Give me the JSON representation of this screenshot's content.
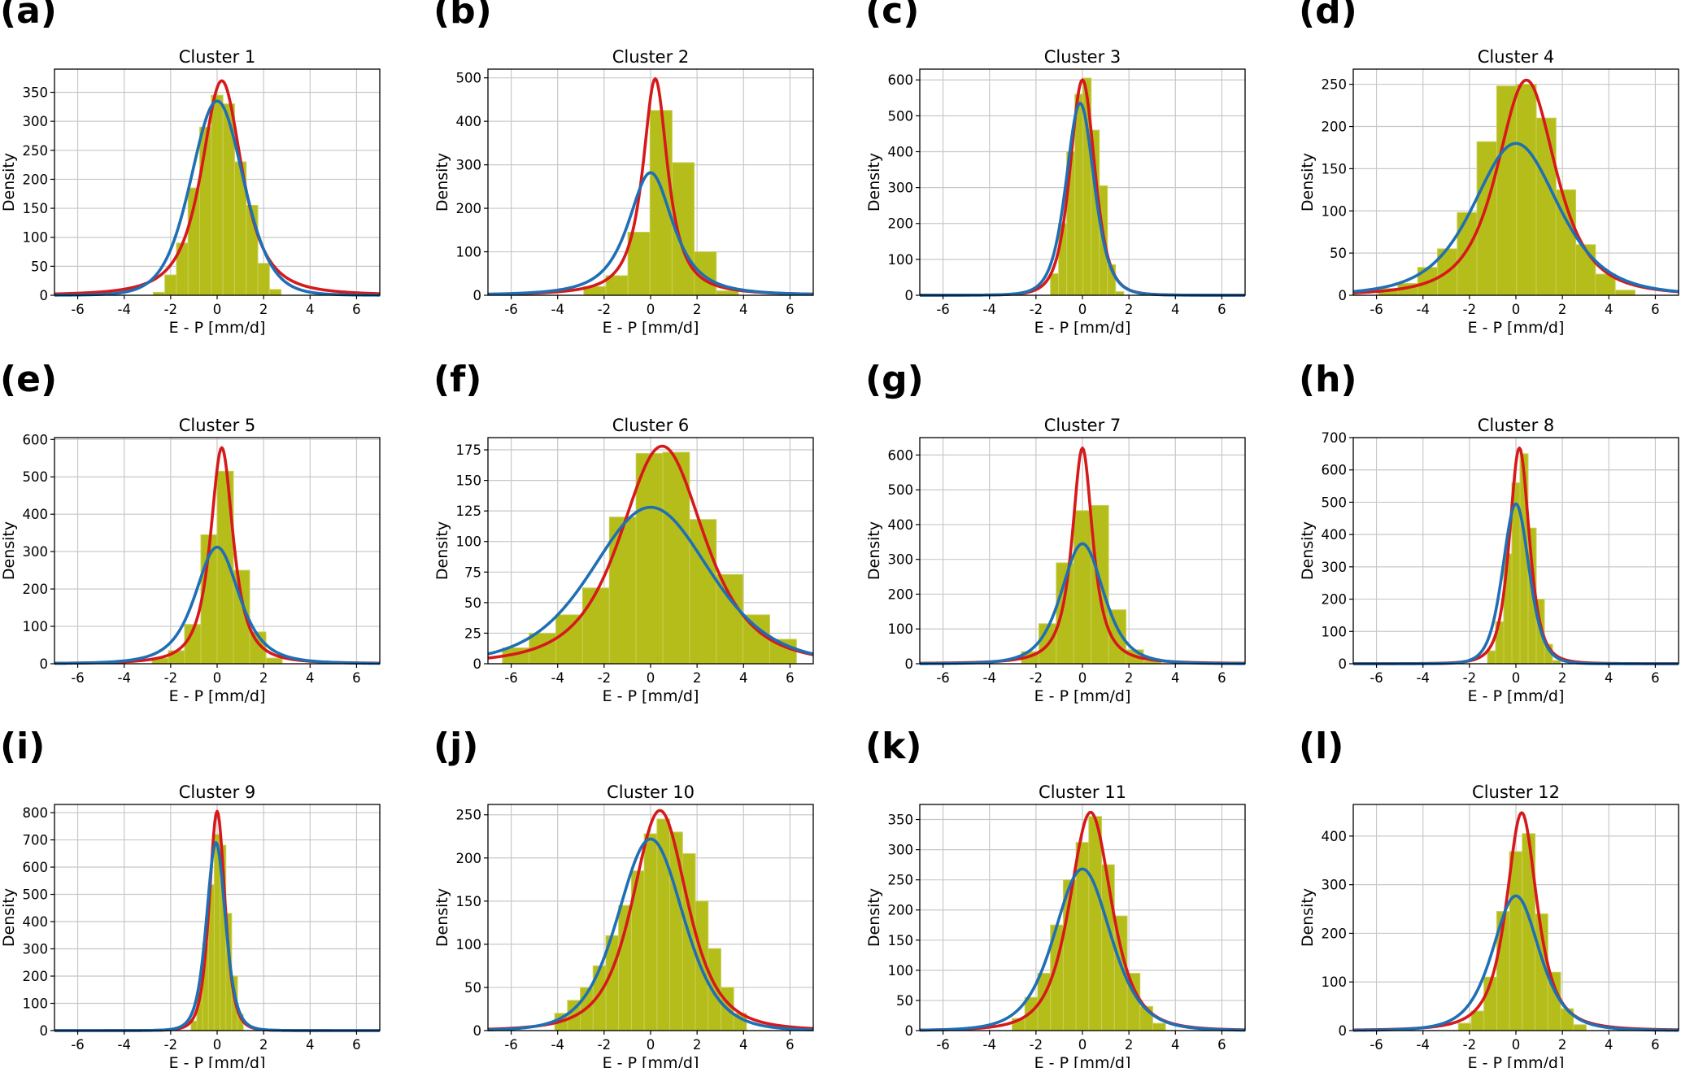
{
  "colors": {
    "hist": "#b5bd1a",
    "hist_edge": "#c9cf55",
    "fit1": "#d6191b",
    "fit2": "#1f6fb5",
    "grid": "#c8c8c8"
  },
  "chart_data": [
    {
      "panel": "(a)",
      "title": "Cluster 1",
      "type": "bar",
      "xlabel": "E - P [mm/d]",
      "ylabel": "Density",
      "xlim": [
        -7,
        7
      ],
      "ylim": [
        0,
        390
      ],
      "xticks": [
        -6,
        -4,
        -2,
        0,
        2,
        4,
        6
      ],
      "yticks": [
        0,
        50,
        100,
        150,
        200,
        250,
        300,
        350
      ],
      "grid": true,
      "histogram": {
        "bin_width": 0.5,
        "bins": [
          {
            "x": -2.5,
            "value": 5
          },
          {
            "x": -2.0,
            "value": 35
          },
          {
            "x": -1.5,
            "value": 90
          },
          {
            "x": -1.0,
            "value": 185
          },
          {
            "x": -0.5,
            "value": 290
          },
          {
            "x": 0,
            "value": 345
          },
          {
            "x": 0.5,
            "value": 330
          },
          {
            "x": 1.0,
            "value": 230
          },
          {
            "x": 1.5,
            "value": 155
          },
          {
            "x": 2.0,
            "value": 55
          },
          {
            "x": 2.5,
            "value": 10
          }
        ]
      },
      "series": [
        {
          "color": "red",
          "peak_x": 0.2,
          "peak": 370,
          "sigma": 0.95,
          "tail": 2.0
        },
        {
          "color": "blue",
          "peak_x": 0.0,
          "peak": 335,
          "sigma": 1.15,
          "tail": 8
        }
      ]
    },
    {
      "panel": "(b)",
      "title": "Cluster 2",
      "type": "bar",
      "xlabel": "E - P [mm/d]",
      "ylabel": "Density",
      "xlim": [
        -7,
        7
      ],
      "ylim": [
        0,
        520
      ],
      "xticks": [
        -6,
        -4,
        -2,
        0,
        2,
        4,
        6
      ],
      "yticks": [
        0,
        100,
        200,
        300,
        400,
        500
      ],
      "grid": true,
      "histogram": {
        "bin_width": 0.95,
        "bins": [
          {
            "x": -2.4,
            "value": 20
          },
          {
            "x": -1.45,
            "value": 45
          },
          {
            "x": -0.5,
            "value": 145
          },
          {
            "x": 0.45,
            "value": 425
          },
          {
            "x": 1.4,
            "value": 305
          },
          {
            "x": 2.35,
            "value": 100
          },
          {
            "x": 3.3,
            "value": 10
          }
        ]
      },
      "series": [
        {
          "color": "red",
          "peak_x": 0.2,
          "peak": 498,
          "sigma": 0.62,
          "tail": 1.3
        },
        {
          "color": "blue",
          "peak_x": 0.0,
          "peak": 282,
          "sigma": 1.05,
          "tail": 2.0
        }
      ]
    },
    {
      "panel": "(c)",
      "title": "Cluster 3",
      "type": "bar",
      "xlabel": "E - P [mm/d]",
      "ylabel": "Density",
      "xlim": [
        -7,
        7
      ],
      "ylim": [
        0,
        630
      ],
      "xticks": [
        -6,
        -4,
        -2,
        0,
        2,
        4,
        6
      ],
      "yticks": [
        0,
        100,
        200,
        300,
        400,
        500,
        600
      ],
      "grid": true,
      "histogram": {
        "bin_width": 0.35,
        "bins": [
          {
            "x": -1.2,
            "value": 60
          },
          {
            "x": -0.85,
            "value": 200
          },
          {
            "x": -0.5,
            "value": 400
          },
          {
            "x": -0.15,
            "value": 560
          },
          {
            "x": 0.2,
            "value": 605
          },
          {
            "x": 0.55,
            "value": 460
          },
          {
            "x": 0.9,
            "value": 305
          },
          {
            "x": 1.25,
            "value": 85
          },
          {
            "x": 1.6,
            "value": 10
          }
        ]
      },
      "series": [
        {
          "color": "red",
          "peak_x": 0.0,
          "peak": 600,
          "sigma": 0.55,
          "tail": 4
        },
        {
          "color": "blue",
          "peak_x": -0.1,
          "peak": 535,
          "sigma": 0.62,
          "tail": 5
        }
      ]
    },
    {
      "panel": "(d)",
      "title": "Cluster 4",
      "type": "bar",
      "xlabel": "E - P [mm/d]",
      "ylabel": "Density",
      "xlim": [
        -7,
        7
      ],
      "ylim": [
        0,
        268
      ],
      "xticks": [
        -6,
        -4,
        -2,
        0,
        2,
        4,
        6
      ],
      "yticks": [
        0,
        50,
        100,
        150,
        200,
        250
      ],
      "grid": true,
      "histogram": {
        "bin_width": 0.85,
        "bins": [
          {
            "x": -5.5,
            "value": 8
          },
          {
            "x": -4.65,
            "value": 14
          },
          {
            "x": -3.8,
            "value": 33
          },
          {
            "x": -2.95,
            "value": 55
          },
          {
            "x": -2.1,
            "value": 98
          },
          {
            "x": -1.25,
            "value": 182
          },
          {
            "x": -0.4,
            "value": 248
          },
          {
            "x": 0.45,
            "value": 250
          },
          {
            "x": 1.3,
            "value": 210
          },
          {
            "x": 2.15,
            "value": 125
          },
          {
            "x": 3.0,
            "value": 60
          },
          {
            "x": 3.85,
            "value": 25
          },
          {
            "x": 4.7,
            "value": 6
          }
        ]
      },
      "series": [
        {
          "color": "red",
          "peak_x": 0.45,
          "peak": 255,
          "sigma": 1.35,
          "tail": 2.5
        },
        {
          "color": "blue",
          "peak_x": 0.0,
          "peak": 180,
          "sigma": 1.9,
          "tail": 4
        }
      ]
    },
    {
      "panel": "(e)",
      "title": "Cluster 5",
      "type": "bar",
      "xlabel": "E - P [mm/d]",
      "ylabel": "Density",
      "xlim": [
        -7,
        7
      ],
      "ylim": [
        0,
        605
      ],
      "xticks": [
        -6,
        -4,
        -2,
        0,
        2,
        4,
        6
      ],
      "yticks": [
        0,
        100,
        200,
        300,
        400,
        500,
        600
      ],
      "grid": true,
      "histogram": {
        "bin_width": 0.7,
        "bins": [
          {
            "x": -2.45,
            "value": 15
          },
          {
            "x": -1.75,
            "value": 35
          },
          {
            "x": -1.05,
            "value": 105
          },
          {
            "x": -0.35,
            "value": 345
          },
          {
            "x": 0.35,
            "value": 515
          },
          {
            "x": 1.05,
            "value": 250
          },
          {
            "x": 1.75,
            "value": 85
          },
          {
            "x": 2.45,
            "value": 15
          }
        ]
      },
      "series": [
        {
          "color": "red",
          "peak_x": 0.2,
          "peak": 578,
          "sigma": 0.55,
          "tail": 1.6
        },
        {
          "color": "blue",
          "peak_x": 0.0,
          "peak": 312,
          "sigma": 1.0,
          "tail": 3
        }
      ]
    },
    {
      "panel": "(f)",
      "title": "Cluster 6",
      "type": "bar",
      "xlabel": "E - P [mm/d]",
      "ylabel": "Density",
      "xlim": [
        -7,
        7
      ],
      "ylim": [
        0,
        185
      ],
      "xticks": [
        -6,
        -4,
        -2,
        0,
        2,
        4,
        6
      ],
      "yticks": [
        0,
        25,
        50,
        75,
        100,
        125,
        150,
        175
      ],
      "grid": true,
      "histogram": {
        "bin_width": 1.15,
        "bins": [
          {
            "x": -5.8,
            "value": 13
          },
          {
            "x": -4.65,
            "value": 25
          },
          {
            "x": -3.5,
            "value": 40
          },
          {
            "x": -2.35,
            "value": 62
          },
          {
            "x": -1.2,
            "value": 120
          },
          {
            "x": -0.05,
            "value": 172
          },
          {
            "x": 1.1,
            "value": 173
          },
          {
            "x": 2.25,
            "value": 118
          },
          {
            "x": 3.4,
            "value": 73
          },
          {
            "x": 4.55,
            "value": 40
          },
          {
            "x": 5.7,
            "value": 20
          }
        ]
      },
      "series": [
        {
          "color": "red",
          "peak_x": 0.5,
          "peak": 178,
          "sigma": 1.9,
          "tail": 3
        },
        {
          "color": "blue",
          "peak_x": 0.0,
          "peak": 128,
          "sigma": 2.6,
          "tail": 6
        }
      ]
    },
    {
      "panel": "(g)",
      "title": "Cluster 7",
      "type": "bar",
      "xlabel": "E - P [mm/d]",
      "ylabel": "Density",
      "xlim": [
        -7,
        7
      ],
      "ylim": [
        0,
        650
      ],
      "xticks": [
        -6,
        -4,
        -2,
        0,
        2,
        4,
        6
      ],
      "yticks": [
        0,
        100,
        200,
        300,
        400,
        500,
        600
      ],
      "grid": true,
      "histogram": {
        "bin_width": 0.75,
        "bins": [
          {
            "x": -2.25,
            "value": 35
          },
          {
            "x": -1.5,
            "value": 115
          },
          {
            "x": -0.75,
            "value": 290
          },
          {
            "x": 0,
            "value": 440
          },
          {
            "x": 0.75,
            "value": 455
          },
          {
            "x": 1.5,
            "value": 155
          },
          {
            "x": 2.25,
            "value": 40
          },
          {
            "x": 3.0,
            "value": 8
          }
        ]
      },
      "series": [
        {
          "color": "red",
          "peak_x": 0.0,
          "peak": 620,
          "sigma": 0.5,
          "tail": 1.5
        },
        {
          "color": "blue",
          "peak_x": 0.0,
          "peak": 345,
          "sigma": 0.95,
          "tail": 4
        }
      ]
    },
    {
      "panel": "(h)",
      "title": "Cluster 8",
      "type": "bar",
      "xlabel": "E - P [mm/d]",
      "ylabel": "Density",
      "xlim": [
        -7,
        7
      ],
      "ylim": [
        0,
        700
      ],
      "xticks": [
        -6,
        -4,
        -2,
        0,
        2,
        4,
        6
      ],
      "yticks": [
        0,
        100,
        200,
        300,
        400,
        500,
        600,
        700
      ],
      "grid": true,
      "histogram": {
        "bin_width": 0.35,
        "bins": [
          {
            "x": -1.05,
            "value": 40
          },
          {
            "x": -0.7,
            "value": 130
          },
          {
            "x": -0.35,
            "value": 340
          },
          {
            "x": 0,
            "value": 560
          },
          {
            "x": 0.35,
            "value": 650
          },
          {
            "x": 0.7,
            "value": 420
          },
          {
            "x": 1.05,
            "value": 200
          },
          {
            "x": 1.4,
            "value": 60
          },
          {
            "x": 1.75,
            "value": 10
          }
        ]
      },
      "series": [
        {
          "color": "red",
          "peak_x": 0.15,
          "peak": 668,
          "sigma": 0.45,
          "tail": 3
        },
        {
          "color": "blue",
          "peak_x": 0.0,
          "peak": 495,
          "sigma": 0.58,
          "tail": 6
        }
      ]
    },
    {
      "panel": "(i)",
      "title": "Cluster 9",
      "type": "bar",
      "xlabel": "E - P [mm/d]",
      "ylabel": "Density",
      "xlim": [
        -7,
        7
      ],
      "ylim": [
        0,
        830
      ],
      "xticks": [
        -6,
        -4,
        -2,
        0,
        2,
        4,
        6
      ],
      "yticks": [
        0,
        100,
        200,
        300,
        400,
        500,
        600,
        700,
        800
      ],
      "grid": true,
      "histogram": {
        "bin_width": 0.25,
        "bins": [
          {
            "x": -1.0,
            "value": 35
          },
          {
            "x": -0.75,
            "value": 140
          },
          {
            "x": -0.5,
            "value": 320
          },
          {
            "x": -0.25,
            "value": 535
          },
          {
            "x": 0,
            "value": 720
          },
          {
            "x": 0.25,
            "value": 680
          },
          {
            "x": 0.5,
            "value": 430
          },
          {
            "x": 0.75,
            "value": 200
          },
          {
            "x": 1.0,
            "value": 60
          }
        ]
      },
      "series": [
        {
          "color": "red",
          "peak_x": 0.0,
          "peak": 805,
          "sigma": 0.35,
          "tail": 4
        },
        {
          "color": "blue",
          "peak_x": -0.05,
          "peak": 690,
          "sigma": 0.42,
          "tail": 5
        }
      ]
    },
    {
      "panel": "(j)",
      "title": "Cluster 10",
      "type": "bar",
      "xlabel": "E - P [mm/d]",
      "ylabel": "Density",
      "xlim": [
        -7,
        7
      ],
      "ylim": [
        0,
        262
      ],
      "xticks": [
        -6,
        -4,
        -2,
        0,
        2,
        4,
        6
      ],
      "yticks": [
        0,
        50,
        100,
        150,
        200,
        250
      ],
      "grid": true,
      "histogram": {
        "bin_width": 0.55,
        "bins": [
          {
            "x": -3.85,
            "value": 20
          },
          {
            "x": -3.3,
            "value": 35
          },
          {
            "x": -2.75,
            "value": 50
          },
          {
            "x": -2.2,
            "value": 75
          },
          {
            "x": -1.65,
            "value": 110
          },
          {
            "x": -1.1,
            "value": 145
          },
          {
            "x": -0.55,
            "value": 185
          },
          {
            "x": 0,
            "value": 228
          },
          {
            "x": 0.55,
            "value": 245
          },
          {
            "x": 1.1,
            "value": 230
          },
          {
            "x": 1.65,
            "value": 205
          },
          {
            "x": 2.2,
            "value": 150
          },
          {
            "x": 2.75,
            "value": 95
          },
          {
            "x": 3.3,
            "value": 50
          },
          {
            "x": 3.85,
            "value": 20
          }
        ]
      },
      "series": [
        {
          "color": "red",
          "peak_x": 0.4,
          "peak": 255,
          "sigma": 1.25,
          "tail": 3
        },
        {
          "color": "blue",
          "peak_x": 0.0,
          "peak": 222,
          "sigma": 1.45,
          "tail": 6
        }
      ]
    },
    {
      "panel": "(k)",
      "title": "Cluster 11",
      "type": "bar",
      "xlabel": "E - P [mm/d]",
      "ylabel": "Density",
      "xlim": [
        -7,
        7
      ],
      "ylim": [
        0,
        375
      ],
      "xticks": [
        -6,
        -4,
        -2,
        0,
        2,
        4,
        6
      ],
      "yticks": [
        0,
        50,
        100,
        150,
        200,
        250,
        300,
        350
      ],
      "grid": true,
      "histogram": {
        "bin_width": 0.55,
        "bins": [
          {
            "x": -2.75,
            "value": 20
          },
          {
            "x": -2.2,
            "value": 55
          },
          {
            "x": -1.65,
            "value": 95
          },
          {
            "x": -1.1,
            "value": 175
          },
          {
            "x": -0.55,
            "value": 250
          },
          {
            "x": 0,
            "value": 312
          },
          {
            "x": 0.55,
            "value": 355
          },
          {
            "x": 1.1,
            "value": 275
          },
          {
            "x": 1.65,
            "value": 190
          },
          {
            "x": 2.2,
            "value": 95
          },
          {
            "x": 2.75,
            "value": 40
          },
          {
            "x": 3.3,
            "value": 12
          }
        ]
      },
      "series": [
        {
          "color": "red",
          "peak_x": 0.35,
          "peak": 362,
          "sigma": 0.95,
          "tail": 3
        },
        {
          "color": "blue",
          "peak_x": 0.0,
          "peak": 268,
          "sigma": 1.25,
          "tail": 5
        }
      ]
    },
    {
      "panel": "(l)",
      "title": "Cluster 12",
      "type": "bar",
      "xlabel": "E - P [mm/d]",
      "ylabel": "Density",
      "xlim": [
        -7,
        7
      ],
      "ylim": [
        0,
        465
      ],
      "xticks": [
        -6,
        -4,
        -2,
        0,
        2,
        4,
        6
      ],
      "yticks": [
        0,
        100,
        200,
        300,
        400
      ],
      "grid": true,
      "histogram": {
        "bin_width": 0.55,
        "bins": [
          {
            "x": -2.2,
            "value": 15
          },
          {
            "x": -1.65,
            "value": 40
          },
          {
            "x": -1.1,
            "value": 110
          },
          {
            "x": -0.55,
            "value": 245
          },
          {
            "x": 0,
            "value": 368
          },
          {
            "x": 0.55,
            "value": 405
          },
          {
            "x": 1.1,
            "value": 240
          },
          {
            "x": 1.65,
            "value": 120
          },
          {
            "x": 2.2,
            "value": 45
          },
          {
            "x": 2.75,
            "value": 12
          }
        ]
      },
      "series": [
        {
          "color": "red",
          "peak_x": 0.25,
          "peak": 448,
          "sigma": 0.72,
          "tail": 2
        },
        {
          "color": "blue",
          "peak_x": 0.0,
          "peak": 277,
          "sigma": 1.05,
          "tail": 4
        }
      ]
    }
  ]
}
